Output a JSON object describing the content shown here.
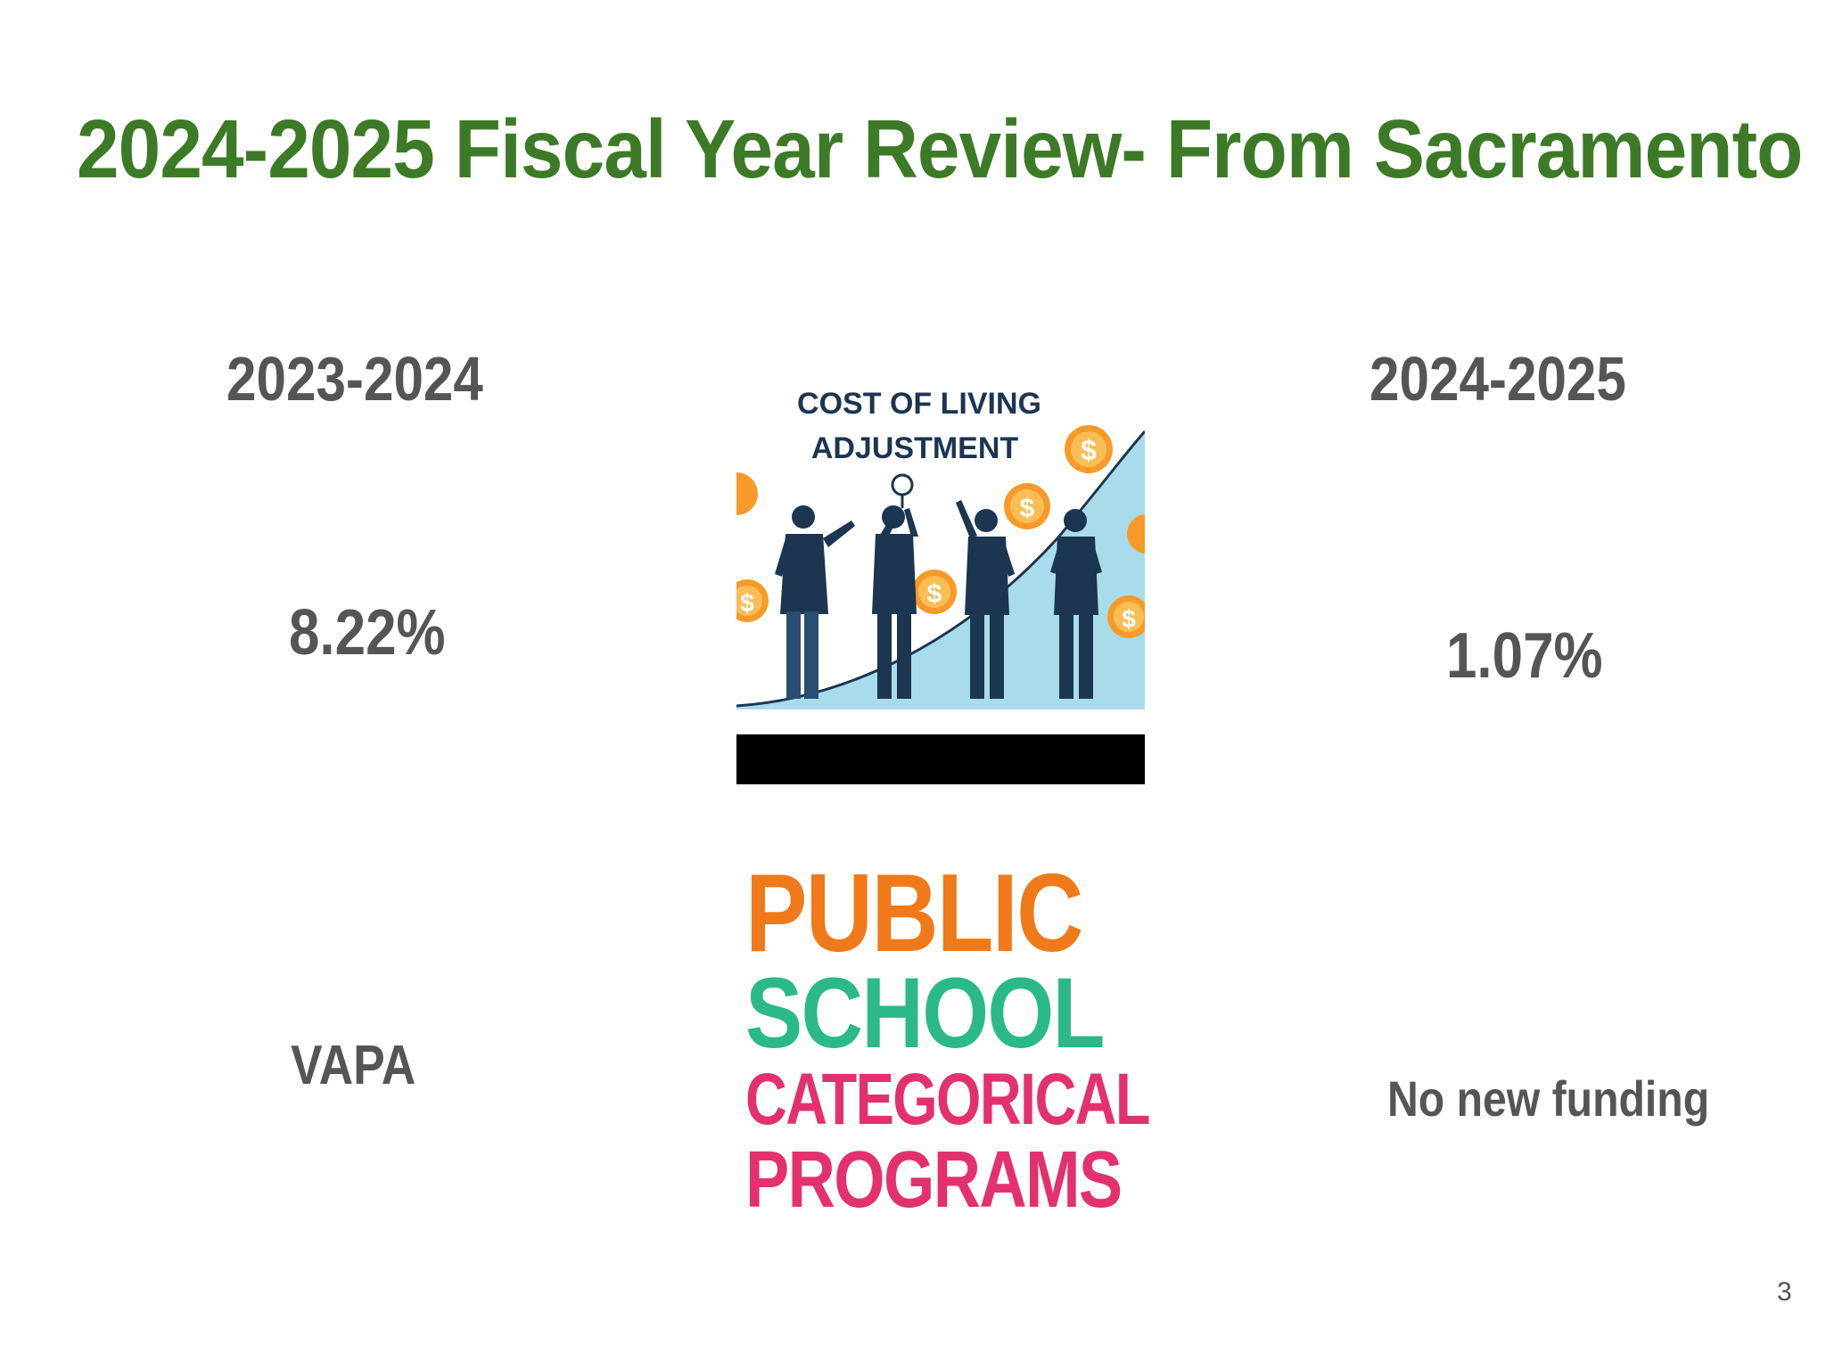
{
  "slide": {
    "title": "2024-2025 Fiscal Year Review- From Sacramento",
    "page_number": "3"
  },
  "left_column": {
    "year": "2023-2024",
    "cola_value": "8.22%",
    "categorical_value": "VAPA"
  },
  "right_column": {
    "year": "2024-2025",
    "cola_value": "1.07%",
    "categorical_value": "No new funding"
  },
  "cola_image": {
    "line1": "COST OF LIVING",
    "line2": "ADJUSTMENT",
    "coin_symbol": "$"
  },
  "categorical_logo": {
    "line1": "PUBLIC",
    "line2": "SCHOOL",
    "line3": "CATEGORICAL",
    "line4": "PROGRAMS"
  },
  "colors": {
    "title": "#3d7a27",
    "body_text": "#555555",
    "logo_orange": "#f07a1a",
    "logo_green": "#2bb98a",
    "logo_pink": "#e3306e"
  }
}
